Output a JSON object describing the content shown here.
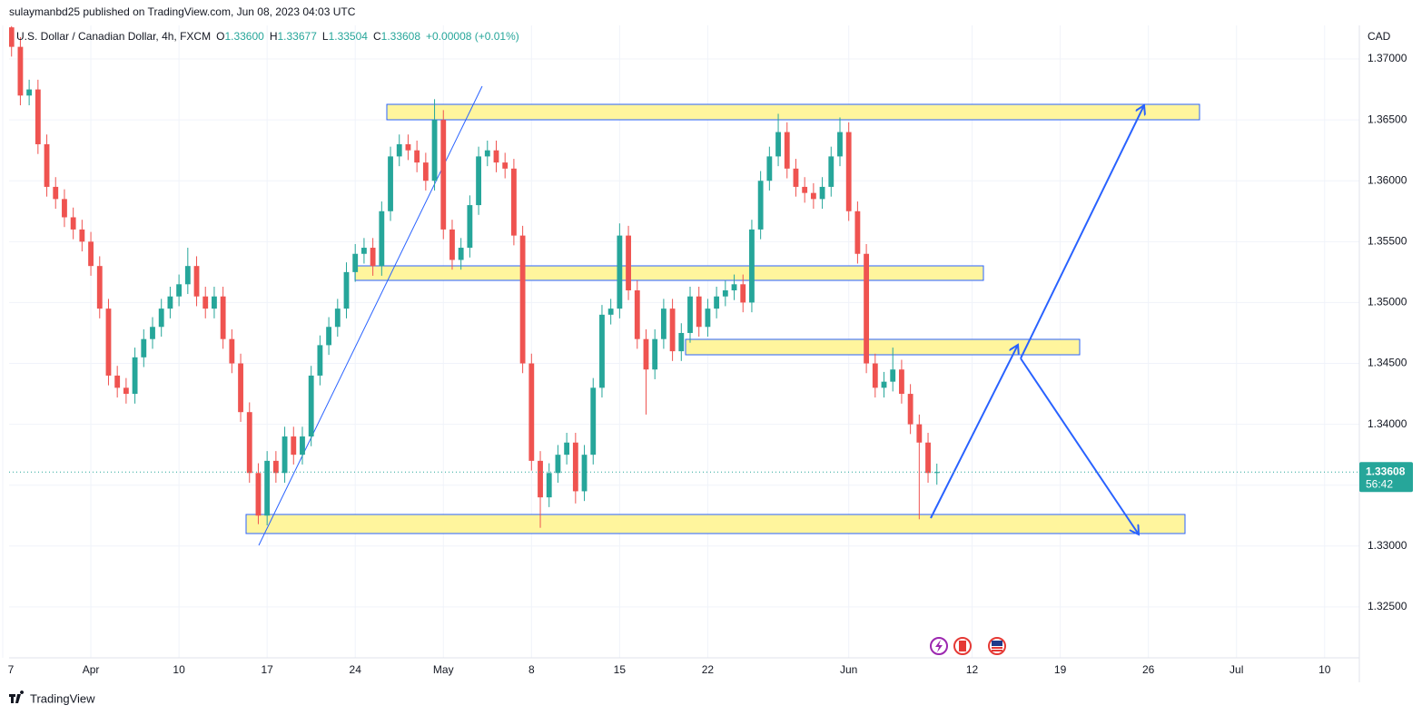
{
  "published": "sulaymanbd25 published on TradingView.com, Jun 08, 2023 04:03 UTC",
  "footer": "TradingView",
  "chart_data": {
    "type": "candlestick",
    "title": "U.S. Dollar / Canadian Dollar, 4h, FXCM",
    "ohlc_labels": [
      "O",
      "H",
      "L",
      "C"
    ],
    "ohlc_value_labels": [
      "1.33600",
      "1.33677",
      "1.33504",
      "1.33608"
    ],
    "change": "+0.00008 (+0.01%)",
    "y_axis_unit": "CAD",
    "last_price_label": "1.33608",
    "countdown": "56:42",
    "up_color": "#26a69a",
    "down_color": "#ef5350",
    "grid": true,
    "xlim": [
      0.36,
      76.97
    ],
    "ylim": [
      1.32082,
      1.37276
    ],
    "xticks": [
      {
        "value": 0,
        "label": "7"
      },
      {
        "value": 5,
        "label": "Apr"
      },
      {
        "value": 10,
        "label": "10"
      },
      {
        "value": 15,
        "label": "17"
      },
      {
        "value": 20,
        "label": "24"
      },
      {
        "value": 25,
        "label": "May"
      },
      {
        "value": 30,
        "label": "8"
      },
      {
        "value": 35,
        "label": "15"
      },
      {
        "value": 40,
        "label": "22"
      },
      {
        "value": 48,
        "label": "Jun"
      },
      {
        "value": 55,
        "label": "12"
      },
      {
        "value": 60,
        "label": "19"
      },
      {
        "value": 65,
        "label": "26"
      },
      {
        "value": 70,
        "label": "Jul"
      },
      {
        "value": 75,
        "label": "10"
      }
    ],
    "yticks": [
      {
        "value": 1.325,
        "label": "1.32500"
      },
      {
        "value": 1.33,
        "label": "1.33000"
      },
      {
        "value": 1.335,
        "label": "1.33500"
      },
      {
        "value": 1.34,
        "label": "1.34000"
      },
      {
        "value": 1.345,
        "label": "1.34500"
      },
      {
        "value": 1.35,
        "label": "1.35000"
      },
      {
        "value": 1.355,
        "label": "1.35500"
      },
      {
        "value": 1.36,
        "label": "1.36000"
      },
      {
        "value": 1.365,
        "label": "1.36500"
      },
      {
        "value": 1.37,
        "label": "1.37000"
      }
    ],
    "x": [
      0.5,
      1,
      1.5,
      2,
      2.5,
      3,
      3.5,
      4,
      4.5,
      5,
      5.5,
      6,
      6.5,
      7,
      7.5,
      8,
      8.5,
      9,
      9.5,
      10,
      10.5,
      11,
      11.5,
      12,
      12.5,
      13,
      13.5,
      14,
      14.5,
      15,
      15.5,
      16,
      16.5,
      17,
      17.5,
      18,
      18.5,
      19,
      19.5,
      20,
      20.5,
      21,
      21.5,
      22,
      22.5,
      23,
      23.5,
      24,
      24.5,
      25,
      25.5,
      26,
      26.5,
      27,
      27.5,
      28,
      28.5,
      29,
      29.5,
      30,
      30.5,
      31,
      31.5,
      32,
      32.5,
      33,
      33.5,
      34,
      34.5,
      35,
      35.5,
      36,
      36.5,
      37,
      37.5,
      38,
      38.5,
      39,
      39.5,
      40,
      40.5,
      41,
      41.5,
      42,
      42.5,
      43,
      43.5,
      44,
      44.5,
      45,
      45.5,
      46,
      46.5,
      47,
      47.5,
      48,
      48.5,
      49,
      49.5,
      50,
      50.5,
      51,
      51.5,
      52,
      52.5,
      53
    ],
    "open": [
      1.3726,
      1.371,
      1.367,
      1.3675,
      1.363,
      1.3595,
      1.3585,
      1.357,
      1.356,
      1.355,
      1.353,
      1.3495,
      1.344,
      1.343,
      1.3425,
      1.3455,
      1.347,
      1.348,
      1.3495,
      1.3505,
      1.3515,
      1.353,
      1.3505,
      1.3495,
      1.3505,
      1.347,
      1.345,
      1.341,
      1.336,
      1.3325,
      1.337,
      1.336,
      1.339,
      1.3375,
      1.339,
      1.344,
      1.3465,
      1.348,
      1.3495,
      1.3525,
      1.354,
      1.3545,
      1.353,
      1.3575,
      1.362,
      1.363,
      1.3625,
      1.3615,
      1.36,
      1.365,
      1.356,
      1.3535,
      1.3545,
      1.358,
      1.362,
      1.3625,
      1.3615,
      1.361,
      1.3555,
      1.345,
      1.337,
      1.334,
      1.336,
      1.3375,
      1.3385,
      1.3345,
      1.3375,
      1.343,
      1.349,
      1.3495,
      1.3555,
      1.351,
      1.347,
      1.3445,
      1.347,
      1.3495,
      1.346,
      1.3475,
      1.3505,
      1.348,
      1.3495,
      1.3505,
      1.351,
      1.3515,
      1.35,
      1.356,
      1.36,
      1.362,
      1.364,
      1.361,
      1.3595,
      1.359,
      1.3585,
      1.3595,
      1.362,
      1.364,
      1.3575,
      1.354,
      1.345,
      1.343,
      1.3435,
      1.3445,
      1.3425,
      1.34,
      1.3385,
      1.336
    ],
    "high": [
      1.3727,
      1.3718,
      1.3683,
      1.3683,
      1.3638,
      1.3603,
      1.3593,
      1.3578,
      1.3568,
      1.3558,
      1.3538,
      1.3503,
      1.3448,
      1.3438,
      1.3463,
      1.3478,
      1.3488,
      1.3503,
      1.3513,
      1.3523,
      1.3545,
      1.3538,
      1.3513,
      1.3513,
      1.3513,
      1.3478,
      1.3458,
      1.3418,
      1.3368,
      1.3378,
      1.3378,
      1.3398,
      1.3398,
      1.3398,
      1.3448,
      1.3473,
      1.3488,
      1.3503,
      1.3533,
      1.3548,
      1.3553,
      1.3553,
      1.3583,
      1.3628,
      1.3638,
      1.3638,
      1.3633,
      1.3623,
      1.3667,
      1.3658,
      1.3568,
      1.3553,
      1.3588,
      1.3628,
      1.3633,
      1.3633,
      1.3623,
      1.3618,
      1.3563,
      1.3458,
      1.3378,
      1.3368,
      1.3383,
      1.3393,
      1.3393,
      1.3383,
      1.3438,
      1.3498,
      1.3503,
      1.3565,
      1.3563,
      1.3518,
      1.3478,
      1.3478,
      1.3503,
      1.3503,
      1.3483,
      1.3513,
      1.3513,
      1.3503,
      1.3513,
      1.3518,
      1.3523,
      1.3523,
      1.3568,
      1.3608,
      1.3628,
      1.3655,
      1.3648,
      1.3618,
      1.3603,
      1.3598,
      1.3603,
      1.3628,
      1.3652,
      1.3648,
      1.3583,
      1.3548,
      1.3458,
      1.3443,
      1.3463,
      1.3453,
      1.3433,
      1.3408,
      1.3393,
      1.33677
    ],
    "low": [
      1.3702,
      1.3662,
      1.3662,
      1.3622,
      1.3587,
      1.3577,
      1.3562,
      1.3552,
      1.3542,
      1.3522,
      1.3487,
      1.3432,
      1.3422,
      1.3417,
      1.3417,
      1.3447,
      1.3462,
      1.3472,
      1.3487,
      1.3497,
      1.3507,
      1.3497,
      1.3487,
      1.3487,
      1.3462,
      1.3442,
      1.3402,
      1.3352,
      1.3318,
      1.3317,
      1.3352,
      1.3352,
      1.3367,
      1.3367,
      1.3382,
      1.3432,
      1.3457,
      1.3472,
      1.3487,
      1.3517,
      1.3532,
      1.3522,
      1.3522,
      1.3567,
      1.3612,
      1.3617,
      1.3607,
      1.3592,
      1.3592,
      1.3552,
      1.3527,
      1.3527,
      1.3537,
      1.3572,
      1.3612,
      1.3607,
      1.3602,
      1.3547,
      1.3442,
      1.3362,
      1.3315,
      1.3332,
      1.3352,
      1.3367,
      1.3335,
      1.3337,
      1.3367,
      1.3422,
      1.3482,
      1.3487,
      1.3502,
      1.3462,
      1.3408,
      1.3437,
      1.3462,
      1.3452,
      1.3452,
      1.3467,
      1.3472,
      1.3472,
      1.3487,
      1.3497,
      1.3502,
      1.3492,
      1.3492,
      1.3552,
      1.3592,
      1.3612,
      1.3602,
      1.3587,
      1.3582,
      1.3577,
      1.3577,
      1.3587,
      1.3612,
      1.3567,
      1.3532,
      1.3442,
      1.3422,
      1.3422,
      1.3427,
      1.3417,
      1.3392,
      1.3322,
      1.3352,
      1.33504
    ],
    "close": [
      1.371,
      1.367,
      1.3675,
      1.363,
      1.3595,
      1.3585,
      1.357,
      1.356,
      1.355,
      1.353,
      1.3495,
      1.344,
      1.343,
      1.3425,
      1.3455,
      1.347,
      1.348,
      1.3495,
      1.3505,
      1.3515,
      1.353,
      1.3505,
      1.3495,
      1.3505,
      1.347,
      1.345,
      1.341,
      1.336,
      1.3325,
      1.337,
      1.336,
      1.339,
      1.3375,
      1.339,
      1.344,
      1.3465,
      1.348,
      1.3495,
      1.3525,
      1.354,
      1.3545,
      1.353,
      1.3575,
      1.362,
      1.363,
      1.3625,
      1.3615,
      1.36,
      1.365,
      1.356,
      1.3535,
      1.3545,
      1.358,
      1.362,
      1.3625,
      1.3615,
      1.361,
      1.3555,
      1.345,
      1.337,
      1.334,
      1.336,
      1.3375,
      1.3385,
      1.3345,
      1.3375,
      1.343,
      1.349,
      1.3495,
      1.3555,
      1.351,
      1.347,
      1.3445,
      1.347,
      1.3495,
      1.346,
      1.3475,
      1.3505,
      1.348,
      1.3495,
      1.3505,
      1.351,
      1.3515,
      1.35,
      1.356,
      1.36,
      1.362,
      1.364,
      1.361,
      1.3595,
      1.359,
      1.3585,
      1.3595,
      1.362,
      1.364,
      1.3575,
      1.354,
      1.345,
      1.343,
      1.3435,
      1.3445,
      1.3425,
      1.34,
      1.3385,
      1.336,
      1.33608
    ]
  }
}
